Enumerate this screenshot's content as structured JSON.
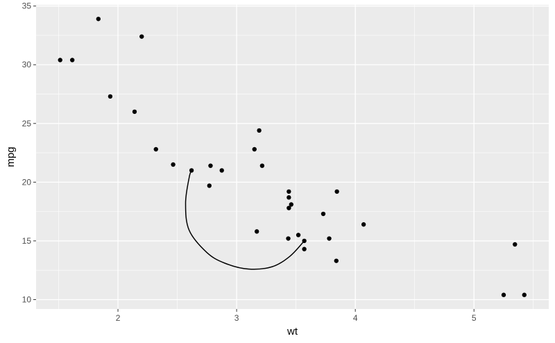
{
  "chart_data": {
    "type": "scatter",
    "xlabel": "wt",
    "ylabel": "mpg",
    "xlim": [
      1.31,
      5.63
    ],
    "ylim": [
      9.2,
      35.1
    ],
    "xticks": [
      2,
      3,
      4,
      5
    ],
    "yticks": [
      10,
      15,
      20,
      25,
      30,
      35
    ],
    "grid": true,
    "background": "#ebebeb",
    "grid_color": "#ffffff",
    "point_color": "#000000",
    "points": [
      {
        "x": 1.513,
        "y": 30.4
      },
      {
        "x": 1.615,
        "y": 30.4
      },
      {
        "x": 1.835,
        "y": 33.9
      },
      {
        "x": 1.935,
        "y": 27.3
      },
      {
        "x": 2.14,
        "y": 26.0
      },
      {
        "x": 2.2,
        "y": 32.4
      },
      {
        "x": 2.32,
        "y": 22.8
      },
      {
        "x": 2.465,
        "y": 21.5
      },
      {
        "x": 2.62,
        "y": 21.0
      },
      {
        "x": 2.77,
        "y": 19.7
      },
      {
        "x": 2.78,
        "y": 21.4
      },
      {
        "x": 2.875,
        "y": 21.0
      },
      {
        "x": 3.15,
        "y": 22.8
      },
      {
        "x": 3.17,
        "y": 15.8
      },
      {
        "x": 3.19,
        "y": 24.4
      },
      {
        "x": 3.215,
        "y": 21.4
      },
      {
        "x": 3.435,
        "y": 15.2
      },
      {
        "x": 3.44,
        "y": 18.7
      },
      {
        "x": 3.44,
        "y": 17.8
      },
      {
        "x": 3.44,
        "y": 19.2
      },
      {
        "x": 3.46,
        "y": 18.1
      },
      {
        "x": 3.52,
        "y": 15.5
      },
      {
        "x": 3.57,
        "y": 14.3
      },
      {
        "x": 3.57,
        "y": 15.0
      },
      {
        "x": 3.73,
        "y": 17.3
      },
      {
        "x": 3.78,
        "y": 15.2
      },
      {
        "x": 3.84,
        "y": 13.3
      },
      {
        "x": 3.845,
        "y": 19.2
      },
      {
        "x": 4.07,
        "y": 16.4
      },
      {
        "x": 5.25,
        "y": 10.4
      },
      {
        "x": 5.345,
        "y": 14.7
      },
      {
        "x": 5.424,
        "y": 10.4
      }
    ],
    "annotations": [
      {
        "type": "curve",
        "color": "#000000",
        "points": [
          [
            2.62,
            21.0
          ],
          [
            2.6,
            20.4
          ],
          [
            2.57,
            18.2
          ],
          [
            2.6,
            15.9
          ],
          [
            2.75,
            14.0
          ],
          [
            2.9,
            13.1
          ],
          [
            3.1,
            12.6
          ],
          [
            3.3,
            12.8
          ],
          [
            3.45,
            13.7
          ],
          [
            3.57,
            15.0
          ]
        ]
      }
    ]
  }
}
